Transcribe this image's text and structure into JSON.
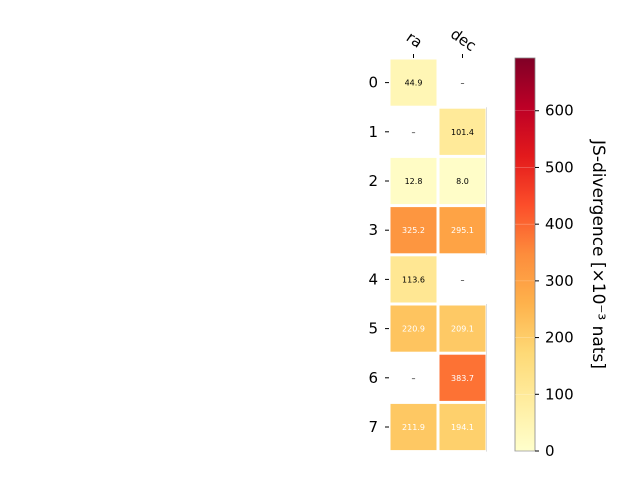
{
  "chart_data": {
    "type": "heatmap",
    "title": "",
    "xlabel": "",
    "ylabel": "",
    "columns": [
      "ra",
      "dec"
    ],
    "rows": [
      "0",
      "1",
      "2",
      "3",
      "4",
      "5",
      "6",
      "7"
    ],
    "values": [
      [
        44.9,
        null
      ],
      [
        null,
        101.4
      ],
      [
        12.8,
        8.0
      ],
      [
        325.2,
        295.1
      ],
      [
        113.6,
        null
      ],
      [
        220.9,
        209.1
      ],
      [
        null,
        383.7
      ],
      [
        211.9,
        194.1
      ]
    ],
    "cell_labels": [
      [
        "44.9",
        "–"
      ],
      [
        "–",
        "101.4"
      ],
      [
        "12.8",
        "8.0"
      ],
      [
        "325.2",
        "295.1"
      ],
      [
        "113.6",
        "–"
      ],
      [
        "220.9",
        "209.1"
      ],
      [
        "–",
        "383.7"
      ],
      [
        "211.9",
        "194.1"
      ]
    ],
    "colorbar": {
      "label": "JS-divergence [×10⁻³ nats]",
      "ticks": [
        0,
        100,
        200,
        300,
        400,
        500,
        600
      ],
      "tick_labels": [
        "0",
        "100",
        "200",
        "300",
        "400",
        "500",
        "600"
      ],
      "range": [
        0,
        693
      ],
      "colormap": "YlOrRd",
      "stops": [
        "#ffffcc",
        "#ffeda0",
        "#fed976",
        "#feb24c",
        "#fd8d3c",
        "#fc4e2a",
        "#e31a1c",
        "#bd0026",
        "#800026"
      ]
    },
    "grid": false
  }
}
